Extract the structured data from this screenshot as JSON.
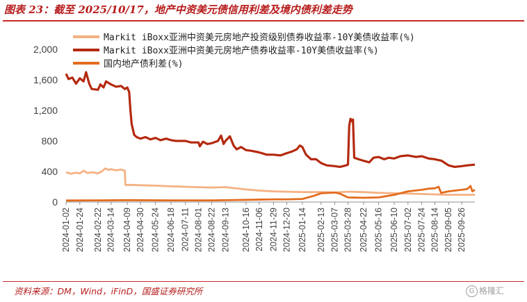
{
  "figure_title": "图表 23：截至 2025/10/17，地产中资美元债信用利差及境内债利差走势",
  "source": "资料来源：DM，Wind，iFinD，国盛证券研究所",
  "watermark": "格隆汇",
  "colors": {
    "series_ig": "#f4b183",
    "series_property": "#b4290f",
    "series_domestic": "#e36c1e",
    "accent": "#c62828"
  },
  "chart_data": {
    "type": "line",
    "title": "",
    "xlabel": "",
    "ylabel": "",
    "ylim": [
      0,
      2000
    ],
    "yticks": [
      0,
      400,
      800,
      1200,
      1600,
      2000
    ],
    "ytick_labels": [
      "0",
      "400",
      "800",
      "1,200",
      "1,600",
      "2,000"
    ],
    "xlim": [
      "2024-01-02",
      "2025-10-17"
    ],
    "xticks": [
      "2024-01-02",
      "2024-01-24",
      "2024-02-22",
      "2024-03-14",
      "2024-04-09",
      "2024-04-30",
      "2024-05-24",
      "2024-06-18",
      "2024-07-11",
      "2024-08-01",
      "2024-08-22",
      "2024-09-13",
      "2024-10-16",
      "2024-11-06",
      "2024-11-29",
      "2024-12-20",
      "2025-01-14",
      "2025-02-13",
      "2025-03-07",
      "2025-03-28",
      "2025-04-22",
      "2025-05-16",
      "2025-06-10",
      "2025-07-02",
      "2025-07-24",
      "2025-08-14",
      "2025-09-05",
      "2025-09-26"
    ],
    "grid": false,
    "legend_position": "top",
    "series": [
      {
        "name": "Markit iBoxx亚洲中资美元房地产投资级别债券收益率-10Y美债收益率(%)",
        "points": [
          [
            "2024-01-02",
            390
          ],
          [
            "2024-01-10",
            370
          ],
          [
            "2024-01-18",
            385
          ],
          [
            "2024-01-24",
            375
          ],
          [
            "2024-01-30",
            410
          ],
          [
            "2024-02-05",
            380
          ],
          [
            "2024-02-14",
            390
          ],
          [
            "2024-02-22",
            375
          ],
          [
            "2024-02-28",
            400
          ],
          [
            "2024-03-05",
            440
          ],
          [
            "2024-03-10",
            420
          ],
          [
            "2024-03-14",
            430
          ],
          [
            "2024-03-22",
            415
          ],
          [
            "2024-03-30",
            425
          ],
          [
            "2024-04-05",
            410
          ],
          [
            "2024-04-06",
            225
          ],
          [
            "2024-04-15",
            225
          ],
          [
            "2024-04-30",
            220
          ],
          [
            "2024-05-24",
            215
          ],
          [
            "2024-06-18",
            205
          ],
          [
            "2024-07-11",
            200
          ],
          [
            "2024-08-01",
            195
          ],
          [
            "2024-08-22",
            190
          ],
          [
            "2024-09-13",
            195
          ],
          [
            "2024-10-16",
            165
          ],
          [
            "2024-11-06",
            150
          ],
          [
            "2024-11-29",
            140
          ],
          [
            "2024-12-20",
            135
          ],
          [
            "2025-01-14",
            130
          ],
          [
            "2025-02-13",
            130
          ],
          [
            "2025-03-07",
            125
          ],
          [
            "2025-03-28",
            135
          ],
          [
            "2025-04-22",
            130
          ],
          [
            "2025-05-16",
            120
          ],
          [
            "2025-06-10",
            115
          ],
          [
            "2025-07-02",
            110
          ],
          [
            "2025-07-24",
            105
          ],
          [
            "2025-08-14",
            100
          ],
          [
            "2025-09-05",
            95
          ],
          [
            "2025-09-26",
            95
          ],
          [
            "2025-10-17",
            95
          ]
        ]
      },
      {
        "name": "Markit iBoxx亚洲中资美元房地产债券收益率-10Y美债收益率(%)",
        "points": [
          [
            "2024-01-02",
            1680
          ],
          [
            "2024-01-06",
            1610
          ],
          [
            "2024-01-12",
            1630
          ],
          [
            "2024-01-18",
            1550
          ],
          [
            "2024-01-24",
            1620
          ],
          [
            "2024-01-30",
            1580
          ],
          [
            "2024-02-03",
            1700
          ],
          [
            "2024-02-08",
            1550
          ],
          [
            "2024-02-12",
            1480
          ],
          [
            "2024-02-22",
            1470
          ],
          [
            "2024-02-26",
            1540
          ],
          [
            "2024-03-02",
            1500
          ],
          [
            "2024-03-06",
            1580
          ],
          [
            "2024-03-14",
            1540
          ],
          [
            "2024-03-22",
            1510
          ],
          [
            "2024-03-30",
            1520
          ],
          [
            "2024-04-05",
            1480
          ],
          [
            "2024-04-09",
            1500
          ],
          [
            "2024-04-12",
            1440
          ],
          [
            "2024-04-14",
            1200
          ],
          [
            "2024-04-16",
            1020
          ],
          [
            "2024-04-20",
            880
          ],
          [
            "2024-04-24",
            850
          ],
          [
            "2024-04-30",
            830
          ],
          [
            "2024-05-08",
            850
          ],
          [
            "2024-05-16",
            820
          ],
          [
            "2024-05-24",
            840
          ],
          [
            "2024-06-01",
            810
          ],
          [
            "2024-06-10",
            830
          ],
          [
            "2024-06-18",
            810
          ],
          [
            "2024-06-26",
            800
          ],
          [
            "2024-07-11",
            800
          ],
          [
            "2024-07-20",
            780
          ],
          [
            "2024-08-01",
            780
          ],
          [
            "2024-08-03",
            730
          ],
          [
            "2024-08-08",
            790
          ],
          [
            "2024-08-15",
            760
          ],
          [
            "2024-08-22",
            770
          ],
          [
            "2024-09-01",
            800
          ],
          [
            "2024-09-06",
            870
          ],
          [
            "2024-09-10",
            760
          ],
          [
            "2024-09-13",
            800
          ],
          [
            "2024-09-20",
            860
          ],
          [
            "2024-09-26",
            740
          ],
          [
            "2024-10-01",
            690
          ],
          [
            "2024-10-08",
            720
          ],
          [
            "2024-10-16",
            680
          ],
          [
            "2024-10-25",
            670
          ],
          [
            "2024-11-06",
            650
          ],
          [
            "2024-11-18",
            620
          ],
          [
            "2024-11-29",
            620
          ],
          [
            "2024-12-10",
            610
          ],
          [
            "2024-12-20",
            640
          ],
          [
            "2024-12-28",
            660
          ],
          [
            "2025-01-05",
            690
          ],
          [
            "2025-01-10",
            740
          ],
          [
            "2025-01-14",
            720
          ],
          [
            "2025-01-20",
            620
          ],
          [
            "2025-01-28",
            560
          ],
          [
            "2025-02-05",
            560
          ],
          [
            "2025-02-13",
            510
          ],
          [
            "2025-02-22",
            480
          ],
          [
            "2025-03-07",
            470
          ],
          [
            "2025-03-15",
            460
          ],
          [
            "2025-03-25",
            480
          ],
          [
            "2025-03-28",
            490
          ],
          [
            "2025-03-30",
            1000
          ],
          [
            "2025-04-01",
            1090
          ],
          [
            "2025-04-03",
            1060
          ],
          [
            "2025-04-05",
            1080
          ],
          [
            "2025-04-07",
            580
          ],
          [
            "2025-04-14",
            560
          ],
          [
            "2025-04-22",
            540
          ],
          [
            "2025-05-01",
            520
          ],
          [
            "2025-05-08",
            580
          ],
          [
            "2025-05-16",
            590
          ],
          [
            "2025-05-25",
            560
          ],
          [
            "2025-06-01",
            580
          ],
          [
            "2025-06-10",
            570
          ],
          [
            "2025-06-20",
            600
          ],
          [
            "2025-07-02",
            610
          ],
          [
            "2025-07-15",
            590
          ],
          [
            "2025-07-24",
            600
          ],
          [
            "2025-08-04",
            570
          ],
          [
            "2025-08-14",
            560
          ],
          [
            "2025-08-25",
            540
          ],
          [
            "2025-09-05",
            480
          ],
          [
            "2025-09-15",
            460
          ],
          [
            "2025-09-26",
            470
          ],
          [
            "2025-10-05",
            480
          ],
          [
            "2025-10-17",
            490
          ]
        ]
      },
      {
        "name": "国内地产债利差(%)",
        "points": [
          [
            "2024-01-02",
            20
          ],
          [
            "2024-02-22",
            22
          ],
          [
            "2024-04-09",
            25
          ],
          [
            "2024-06-18",
            22
          ],
          [
            "2024-08-22",
            22
          ],
          [
            "2024-10-16",
            28
          ],
          [
            "2024-11-29",
            35
          ],
          [
            "2024-12-20",
            35
          ],
          [
            "2025-01-14",
            40
          ],
          [
            "2025-02-01",
            80
          ],
          [
            "2025-02-13",
            115
          ],
          [
            "2025-03-07",
            125
          ],
          [
            "2025-03-15",
            110
          ],
          [
            "2025-03-28",
            60
          ],
          [
            "2025-04-22",
            55
          ],
          [
            "2025-05-16",
            60
          ],
          [
            "2025-06-10",
            95
          ],
          [
            "2025-07-02",
            140
          ],
          [
            "2025-07-24",
            160
          ],
          [
            "2025-08-04",
            175
          ],
          [
            "2025-08-14",
            180
          ],
          [
            "2025-08-20",
            200
          ],
          [
            "2025-08-24",
            120
          ],
          [
            "2025-09-05",
            140
          ],
          [
            "2025-09-15",
            150
          ],
          [
            "2025-09-26",
            160
          ],
          [
            "2025-10-05",
            170
          ],
          [
            "2025-10-10",
            210
          ],
          [
            "2025-10-13",
            140
          ],
          [
            "2025-10-17",
            160
          ]
        ]
      }
    ]
  }
}
